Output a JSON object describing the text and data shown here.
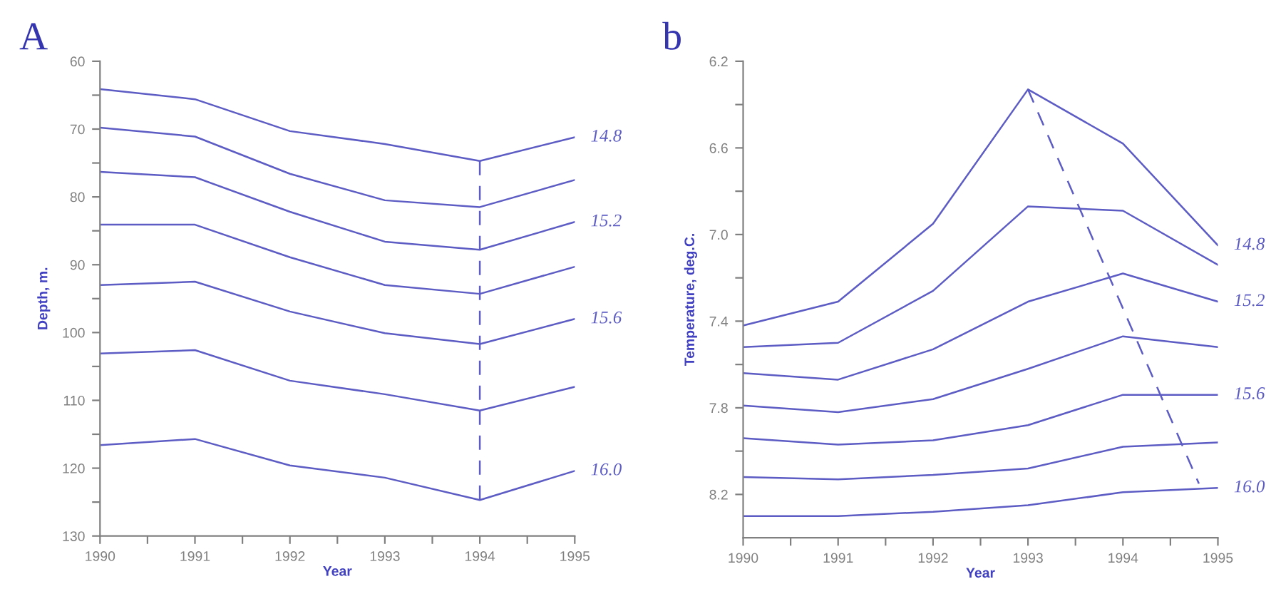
{
  "chart_data": [
    {
      "type": "line",
      "title": "A",
      "xlabel": "Year",
      "ylabel": "Depth, m.",
      "x": [
        1990,
        1991,
        1992,
        1993,
        1994,
        1995
      ],
      "xlim": [
        1990,
        1995
      ],
      "xticks": [
        1990,
        {
          "value": 1990.5,
          "label": null
        },
        1991,
        {
          "value": 1991.5,
          "label": null
        },
        1992,
        {
          "value": 1992.5,
          "label": null
        },
        1993,
        {
          "value": 1993.5,
          "label": null
        },
        1994,
        {
          "value": 1994.5,
          "label": null
        },
        1995
      ],
      "ylim": [
        130,
        60
      ],
      "yticks": [
        60,
        {
          "value": 65,
          "label": null
        },
        70,
        {
          "value": 75,
          "label": null
        },
        80,
        {
          "value": 85,
          "label": null
        },
        90,
        {
          "value": 95,
          "label": null
        },
        100,
        {
          "value": 105,
          "label": null
        },
        110,
        {
          "value": 115,
          "label": null
        },
        120,
        {
          "value": 125,
          "label": null
        },
        130
      ],
      "grid": false,
      "legend": false,
      "marker": "none",
      "line_style": "solid",
      "series": [
        {
          "name": "14.8",
          "color": "#5c5cc4",
          "values": [
            64.1,
            65.6,
            70.3,
            72.2,
            74.7,
            71.2
          ]
        },
        {
          "color": "#5c5cc4",
          "values": [
            69.8,
            71.1,
            76.6,
            80.5,
            81.5,
            77.5
          ]
        },
        {
          "name": "15.2",
          "color": "#5c5cc4",
          "values": [
            76.3,
            77.1,
            82.2,
            86.6,
            87.8,
            83.7
          ]
        },
        {
          "color": "#5c5cc4",
          "values": [
            84.1,
            84.1,
            88.9,
            93.0,
            94.3,
            90.3
          ]
        },
        {
          "name": "15.6",
          "color": "#5c5cc4",
          "values": [
            93.0,
            92.5,
            96.9,
            100.1,
            101.7,
            98.0
          ]
        },
        {
          "color": "#5c5cc4",
          "values": [
            103.1,
            102.6,
            107.1,
            109.1,
            111.5,
            108.0
          ]
        },
        {
          "name": "16.0",
          "color": "#5c5cc4",
          "values": [
            116.6,
            115.7,
            119.6,
            121.4,
            124.7,
            120.4
          ]
        },
        {
          "type": "line",
          "line_style": "dashed",
          "color": "#5c5cc4",
          "x": [
            1994,
            1994
          ],
          "values": [
            74.7,
            124.7
          ]
        }
      ]
    },
    {
      "type": "line",
      "title": "b",
      "xlabel": "Year",
      "ylabel": "Temperature, deg.C.",
      "x": [
        1990,
        1991,
        1992,
        1993,
        1994,
        1995
      ],
      "xlim": [
        1990,
        1995
      ],
      "xticks": [
        1990,
        {
          "value": 1990.5,
          "label": null
        },
        1991,
        {
          "value": 1991.5,
          "label": null
        },
        1992,
        {
          "value": 1992.5,
          "label": null
        },
        1993,
        {
          "value": 1993.5,
          "label": null
        },
        1994,
        {
          "value": 1994.5,
          "label": null
        },
        1995
      ],
      "ylim": [
        8.4,
        6.2
      ],
      "yticks": [
        {
          "value": 6.2,
          "label": "6.2"
        },
        {
          "value": 6.4,
          "label": null
        },
        {
          "value": 6.6,
          "label": "6.6"
        },
        {
          "value": 6.8,
          "label": null
        },
        {
          "value": 7.0,
          "label": "7.0"
        },
        {
          "value": 7.2,
          "label": null
        },
        {
          "value": 7.4,
          "label": "7.4"
        },
        {
          "value": 7.6,
          "label": null
        },
        {
          "value": 7.8,
          "label": "7.8"
        },
        {
          "value": 8.0,
          "label": null
        },
        {
          "value": 8.2,
          "label": "8.2"
        }
      ],
      "grid": false,
      "legend": false,
      "marker": "none",
      "line_style": "solid",
      "series": [
        {
          "name": "14.8",
          "color": "#5c5cc4",
          "values": [
            7.42,
            7.31,
            6.95,
            6.33,
            6.58,
            7.05
          ]
        },
        {
          "color": "#5c5cc4",
          "values": [
            7.52,
            7.5,
            7.26,
            6.87,
            6.89,
            7.14
          ]
        },
        {
          "name": "15.2",
          "color": "#5c5cc4",
          "values": [
            7.64,
            7.67,
            7.53,
            7.31,
            7.18,
            7.31
          ]
        },
        {
          "color": "#5c5cc4",
          "values": [
            7.79,
            7.82,
            7.76,
            7.62,
            7.47,
            7.52
          ]
        },
        {
          "name": "15.6",
          "color": "#5c5cc4",
          "values": [
            7.94,
            7.97,
            7.95,
            7.88,
            7.74,
            7.74
          ]
        },
        {
          "color": "#5c5cc4",
          "values": [
            8.12,
            8.13,
            8.11,
            8.08,
            7.98,
            7.96
          ]
        },
        {
          "name": "16.0",
          "color": "#5c5cc4",
          "values": [
            8.3,
            8.3,
            8.28,
            8.25,
            8.19,
            8.17
          ]
        },
        {
          "type": "line",
          "line_style": "dashed",
          "color": "#5c5cc4",
          "x": [
            1993,
            1994.8
          ],
          "values": [
            6.33,
            8.15
          ]
        }
      ]
    }
  ]
}
